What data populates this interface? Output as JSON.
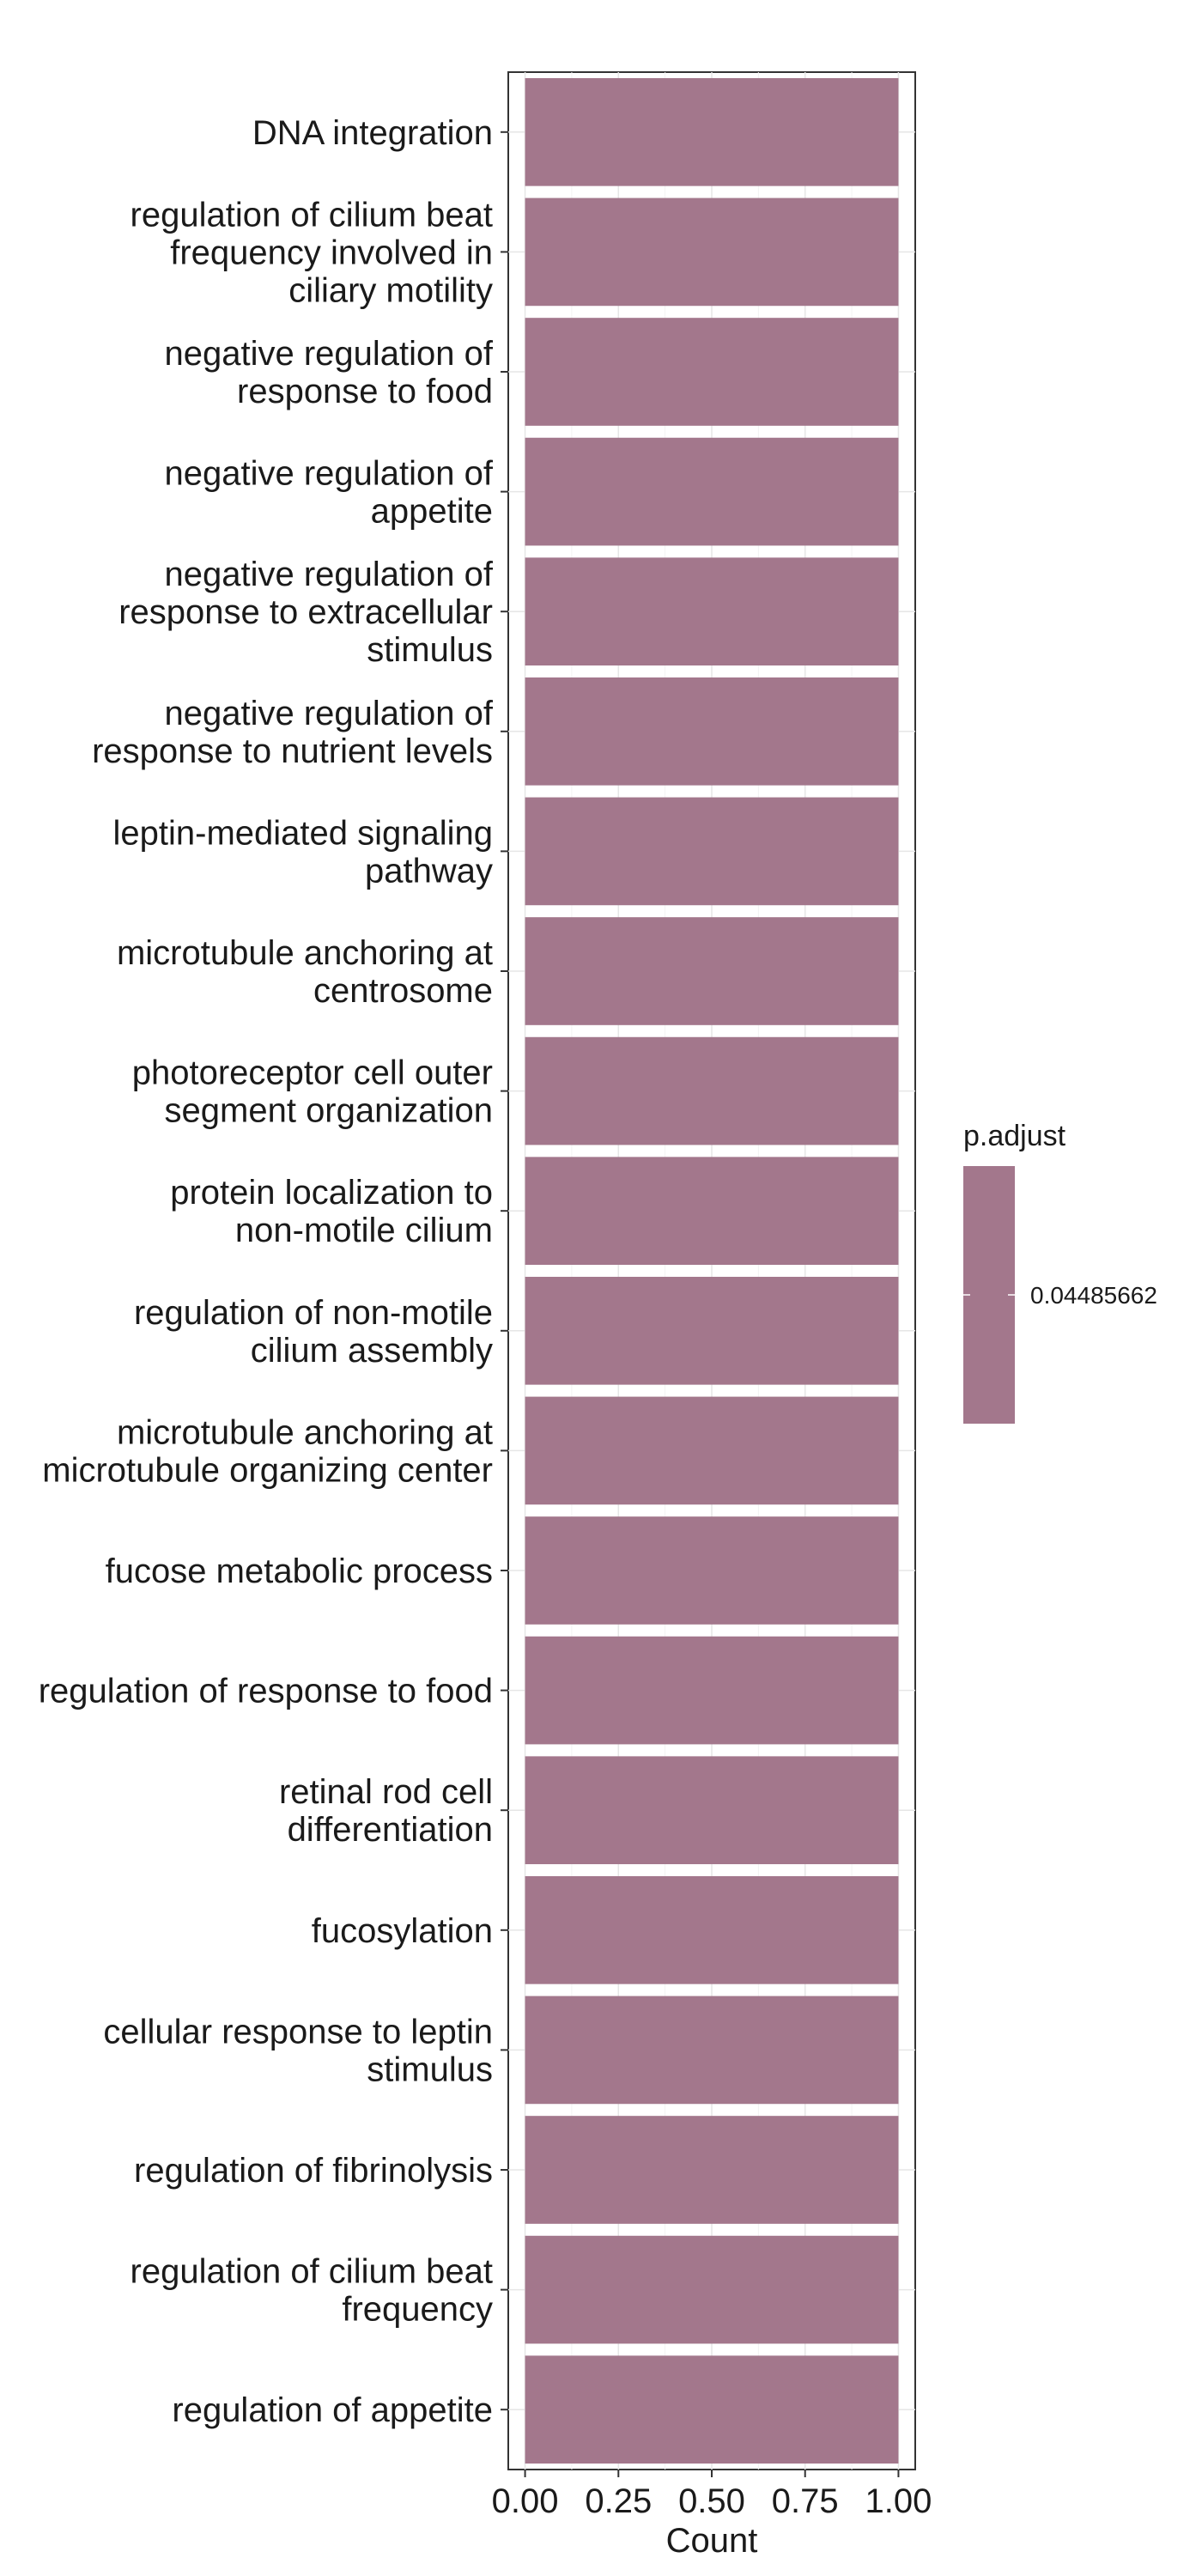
{
  "chart_data": {
    "type": "bar",
    "orientation": "horizontal",
    "categories": [
      [
        "DNA integration"
      ],
      [
        "regulation of cilium beat",
        "frequency involved in",
        "ciliary motility"
      ],
      [
        "negative regulation of",
        "response to food"
      ],
      [
        "negative regulation of",
        "appetite"
      ],
      [
        "negative regulation of",
        "response to extracellular",
        "stimulus"
      ],
      [
        "negative regulation of",
        "response to nutrient levels"
      ],
      [
        "leptin-mediated signaling",
        "pathway"
      ],
      [
        "microtubule anchoring at",
        "centrosome"
      ],
      [
        "photoreceptor cell outer",
        "segment organization"
      ],
      [
        "protein localization to",
        "non-motile cilium"
      ],
      [
        "regulation of non-motile",
        "cilium assembly"
      ],
      [
        "microtubule anchoring at",
        "microtubule organizing center"
      ],
      [
        "fucose metabolic process"
      ],
      [
        "regulation of response to food"
      ],
      [
        "retinal rod cell",
        "differentiation"
      ],
      [
        "fucosylation"
      ],
      [
        "cellular response to leptin",
        "stimulus"
      ],
      [
        "regulation of fibrinolysis"
      ],
      [
        "regulation of cilium beat",
        "frequency"
      ],
      [
        "regulation of appetite"
      ]
    ],
    "values": [
      1,
      1,
      1,
      1,
      1,
      1,
      1,
      1,
      1,
      1,
      1,
      1,
      1,
      1,
      1,
      1,
      1,
      1,
      1,
      1
    ],
    "p_adjust": [
      0.04485662,
      0.04485662,
      0.04485662,
      0.04485662,
      0.04485662,
      0.04485662,
      0.04485662,
      0.04485662,
      0.04485662,
      0.04485662,
      0.04485662,
      0.04485662,
      0.04485662,
      0.04485662,
      0.04485662,
      0.04485662,
      0.04485662,
      0.04485662,
      0.04485662,
      0.04485662
    ],
    "xlabel": "Count",
    "ylabel": "",
    "xlim": [
      -0.045,
      1.045
    ],
    "xticks": [
      0,
      0.25,
      0.5,
      0.75,
      1
    ],
    "xtick_labels": [
      "0.00",
      "0.25",
      "0.50",
      "0.75",
      "1.00"
    ],
    "grid": true,
    "bar_color": "#a3778c",
    "legend": {
      "title": "p.adjust",
      "labels": [
        "0.04485662"
      ],
      "placement": "right",
      "color": "#a3778c"
    }
  }
}
